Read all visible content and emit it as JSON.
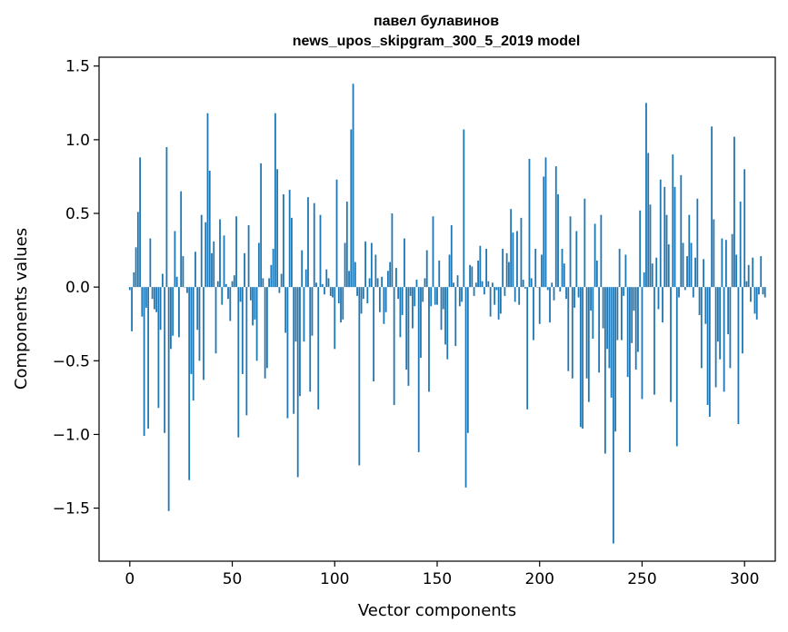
{
  "chart_data": {
    "type": "bar",
    "title": "павел булавинов",
    "subtitle": "news_upos_skipgram_300_5_2019 model",
    "xlabel": "Vector components",
    "ylabel": "Components values",
    "xlim": [
      -15,
      315
    ],
    "ylim": [
      -1.86,
      1.56
    ],
    "x_ticks": [
      {
        "value": 0,
        "label": "0"
      },
      {
        "value": 50,
        "label": "50"
      },
      {
        "value": 100,
        "label": "100"
      },
      {
        "value": 150,
        "label": "150"
      },
      {
        "value": 200,
        "label": "200"
      },
      {
        "value": 250,
        "label": "250"
      },
      {
        "value": 300,
        "label": "300"
      }
    ],
    "y_ticks": [
      {
        "value": 1.5,
        "label": "1.5"
      },
      {
        "value": 1.0,
        "label": "1.0"
      },
      {
        "value": 0.5,
        "label": "0.5"
      },
      {
        "value": 0.0,
        "label": "0.0"
      },
      {
        "value": -0.5,
        "label": "−0.5"
      },
      {
        "value": -1.0,
        "label": "−1.0"
      },
      {
        "value": -1.5,
        "label": "−1.5"
      }
    ],
    "grid": false,
    "bar_color": "#1f77b4",
    "values": [
      -0.02,
      -0.3,
      0.1,
      0.27,
      0.51,
      0.88,
      -0.2,
      -1.01,
      -0.14,
      -0.96,
      0.33,
      -0.08,
      -0.15,
      -0.17,
      -0.82,
      -0.29,
      0.09,
      -0.99,
      0.95,
      -1.52,
      -0.42,
      -0.33,
      0.38,
      0.07,
      -0.34,
      0.65,
      0.21,
      0.0,
      -0.04,
      -1.31,
      -0.59,
      -0.77,
      0.24,
      -0.29,
      -0.5,
      0.49,
      -0.63,
      0.44,
      1.18,
      0.79,
      0.23,
      0.31,
      -0.45,
      0.04,
      0.46,
      -0.12,
      0.35,
      0.02,
      -0.08,
      -0.23,
      0.04,
      0.08,
      0.48,
      -1.02,
      -0.1,
      -0.59,
      0.23,
      -0.87,
      0.42,
      -0.09,
      -0.26,
      -0.22,
      -0.5,
      0.3,
      0.84,
      0.06,
      -0.62,
      -0.55,
      0.06,
      0.15,
      0.26,
      1.18,
      0.8,
      -0.04,
      0.09,
      0.63,
      -0.31,
      -0.89,
      0.66,
      0.47,
      -0.86,
      -0.37,
      -1.29,
      -0.74,
      0.25,
      -0.37,
      0.12,
      0.61,
      -0.71,
      -0.33,
      0.57,
      0.03,
      -0.83,
      0.49,
      0.02,
      -0.05,
      0.12,
      0.06,
      -0.06,
      -0.07,
      -0.42,
      0.73,
      -0.11,
      -0.24,
      -0.22,
      0.3,
      0.58,
      0.11,
      1.07,
      1.38,
      0.17,
      -0.06,
      -1.21,
      -0.18,
      -0.08,
      0.31,
      -0.11,
      0.06,
      0.3,
      -0.64,
      0.22,
      0.06,
      -0.17,
      0.07,
      -0.25,
      -0.17,
      0.11,
      0.17,
      0.5,
      -0.8,
      0.13,
      -0.08,
      -0.34,
      -0.19,
      0.33,
      -0.56,
      -0.67,
      -0.06,
      -0.28,
      -0.13,
      0.05,
      -1.12,
      -0.48,
      -0.1,
      0.06,
      0.25,
      -0.71,
      -0.13,
      0.48,
      -0.12,
      -0.12,
      0.18,
      -0.29,
      -0.15,
      -0.39,
      -0.49,
      0.22,
      0.42,
      0.03,
      -0.4,
      0.08,
      -0.13,
      -0.1,
      1.07,
      -1.36,
      -0.99,
      0.15,
      0.14,
      -0.06,
      0.03,
      0.18,
      0.28,
      0.04,
      -0.05,
      0.26,
      0.04,
      -0.2,
      0.03,
      -0.12,
      -0.02,
      -0.22,
      -0.18,
      0.26,
      -0.06,
      0.23,
      0.17,
      0.53,
      0.37,
      -0.1,
      0.38,
      -0.12,
      0.47,
      0.05,
      -0.01,
      -0.83,
      0.87,
      0.06,
      -0.36,
      0.26,
      0.0,
      -0.25,
      0.22,
      0.75,
      0.88,
      -0.02,
      -0.24,
      0.03,
      -0.09,
      0.82,
      0.63,
      -0.03,
      0.26,
      0.16,
      -0.08,
      -0.57,
      0.48,
      -0.62,
      -0.14,
      0.38,
      -0.07,
      -0.95,
      -0.96,
      0.6,
      -0.62,
      -0.78,
      -0.16,
      -0.35,
      0.43,
      0.18,
      -0.58,
      0.49,
      -0.28,
      -1.13,
      -0.42,
      -0.55,
      -0.75,
      -1.74,
      -0.98,
      -0.36,
      0.26,
      -0.36,
      -0.06,
      0.22,
      -0.61,
      -1.12,
      -0.38,
      -0.16,
      -0.56,
      -0.44,
      0.52,
      -0.76,
      0.1,
      1.25,
      0.91,
      0.56,
      0.16,
      -0.73,
      0.2,
      -0.15,
      0.73,
      -0.24,
      0.68,
      0.49,
      0.29,
      -0.78,
      0.9,
      0.68,
      -1.08,
      -0.07,
      0.76,
      0.3,
      -0.02,
      0.21,
      0.49,
      0.3,
      -0.07,
      0.2,
      0.6,
      -0.19,
      -0.55,
      0.19,
      -0.25,
      -0.8,
      -0.88,
      1.09,
      0.46,
      -0.68,
      -0.37,
      -0.49,
      0.33,
      -0.71,
      0.32,
      -0.32,
      -0.55,
      0.36,
      1.02,
      0.22,
      -0.93,
      0.58,
      -0.45,
      0.8,
      0.04,
      0.15,
      -0.1,
      0.2,
      -0.18,
      -0.22,
      -0.05,
      0.21,
      -0.05,
      -0.07
    ]
  }
}
